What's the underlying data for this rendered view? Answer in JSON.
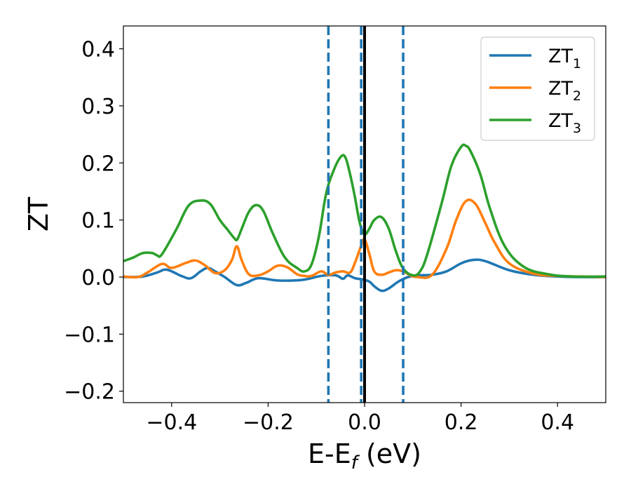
{
  "chart_data": {
    "type": "line",
    "xlabel": {
      "main": "E-E",
      "sub": "f",
      "unit": " (eV)"
    },
    "ylabel": "ZT",
    "xlim": [
      -0.5,
      0.5
    ],
    "ylim": [
      -0.22,
      0.44
    ],
    "xticks": [
      -0.4,
      -0.2,
      0.0,
      0.2,
      0.4
    ],
    "xtick_labels": [
      "−0.4",
      "−0.2",
      "0.0",
      "0.2",
      "0.4"
    ],
    "yticks": [
      -0.2,
      -0.1,
      0.0,
      0.1,
      0.2,
      0.3,
      0.4
    ],
    "ytick_labels": [
      "−0.2",
      "−0.1",
      "0.0",
      "0.1",
      "0.2",
      "0.3",
      "0.4"
    ],
    "grid": false,
    "legend_position": "top-right",
    "vlines": [
      {
        "x": 0.0,
        "style": "solid",
        "color": "#000000"
      },
      {
        "x": -0.075,
        "style": "dashed",
        "color": "#1f77b4"
      },
      {
        "x": -0.007,
        "style": "dashed",
        "color": "#1f77b4"
      },
      {
        "x": 0.08,
        "style": "dashed",
        "color": "#1f77b4"
      }
    ],
    "series": [
      {
        "name": "ZT",
        "name_sub": "1",
        "color": "#1f77b4",
        "x": [
          -0.5,
          -0.46,
          -0.43,
          -0.41,
          -0.38,
          -0.36,
          -0.34,
          -0.325,
          -0.31,
          -0.29,
          -0.265,
          -0.245,
          -0.22,
          -0.18,
          -0.13,
          -0.09,
          -0.06,
          -0.045,
          -0.035,
          -0.02,
          -0.005,
          0.01,
          0.02,
          0.035,
          0.05,
          0.07,
          0.09,
          0.11,
          0.14,
          0.17,
          0.2,
          0.225,
          0.25,
          0.3,
          0.35,
          0.4,
          0.45,
          0.5
        ],
        "y": [
          0.0,
          0.001,
          0.008,
          0.013,
          0.002,
          -0.002,
          0.01,
          0.016,
          0.01,
          0.0,
          -0.014,
          -0.01,
          -0.002,
          -0.006,
          -0.005,
          0.002,
          0.003,
          -0.003,
          0.003,
          -0.002,
          -0.004,
          -0.008,
          -0.016,
          -0.024,
          -0.02,
          -0.008,
          0.0,
          0.003,
          0.004,
          0.01,
          0.024,
          0.03,
          0.028,
          0.012,
          0.004,
          0.001,
          0.0,
          0.0
        ]
      },
      {
        "name": "ZT",
        "name_sub": "2",
        "color": "#ff7f0e",
        "x": [
          -0.5,
          -0.47,
          -0.45,
          -0.42,
          -0.4,
          -0.37,
          -0.35,
          -0.33,
          -0.31,
          -0.29,
          -0.275,
          -0.265,
          -0.255,
          -0.24,
          -0.22,
          -0.2,
          -0.18,
          -0.16,
          -0.14,
          -0.125,
          -0.11,
          -0.09,
          -0.075,
          -0.06,
          -0.045,
          -0.03,
          -0.02,
          -0.007,
          0.0,
          0.01,
          0.02,
          0.035,
          0.05,
          0.065,
          0.08,
          0.095,
          0.11,
          0.14,
          0.17,
          0.19,
          0.21,
          0.23,
          0.25,
          0.27,
          0.3,
          0.35,
          0.4,
          0.45,
          0.5
        ],
        "y": [
          0.001,
          0.0,
          0.008,
          0.023,
          0.016,
          0.025,
          0.029,
          0.02,
          0.007,
          0.012,
          0.03,
          0.054,
          0.03,
          0.005,
          0.003,
          0.01,
          0.02,
          0.017,
          0.005,
          0.002,
          0.002,
          0.01,
          0.004,
          0.008,
          0.01,
          0.008,
          0.025,
          0.055,
          0.066,
          0.04,
          0.01,
          0.004,
          0.008,
          0.012,
          0.01,
          0.003,
          0.0,
          0.004,
          0.05,
          0.1,
          0.133,
          0.128,
          0.095,
          0.06,
          0.024,
          0.006,
          0.002,
          0.001,
          0.0
        ]
      },
      {
        "name": "ZT",
        "name_sub": "3",
        "color": "#2ca02c",
        "x": [
          -0.5,
          -0.48,
          -0.46,
          -0.44,
          -0.43,
          -0.42,
          -0.39,
          -0.365,
          -0.34,
          -0.32,
          -0.3,
          -0.285,
          -0.27,
          -0.264,
          -0.255,
          -0.24,
          -0.225,
          -0.21,
          -0.19,
          -0.165,
          -0.14,
          -0.125,
          -0.11,
          -0.095,
          -0.08,
          -0.065,
          -0.05,
          -0.04,
          -0.03,
          -0.02,
          -0.01,
          0.0,
          0.01,
          0.02,
          0.035,
          0.05,
          0.065,
          0.08,
          0.1,
          0.115,
          0.13,
          0.16,
          0.18,
          0.2,
          0.21,
          0.22,
          0.24,
          0.26,
          0.29,
          0.33,
          0.38,
          0.43,
          0.5
        ],
        "y": [
          0.028,
          0.034,
          0.042,
          0.042,
          0.038,
          0.04,
          0.084,
          0.125,
          0.134,
          0.128,
          0.1,
          0.084,
          0.068,
          0.066,
          0.084,
          0.114,
          0.126,
          0.116,
          0.076,
          0.034,
          0.016,
          0.01,
          0.022,
          0.07,
          0.145,
          0.185,
          0.21,
          0.21,
          0.18,
          0.14,
          0.095,
          0.075,
          0.085,
          0.1,
          0.105,
          0.085,
          0.045,
          0.015,
          0.003,
          0.01,
          0.04,
          0.13,
          0.195,
          0.228,
          0.23,
          0.22,
          0.18,
          0.12,
          0.055,
          0.018,
          0.005,
          0.001,
          0.001
        ]
      }
    ]
  }
}
